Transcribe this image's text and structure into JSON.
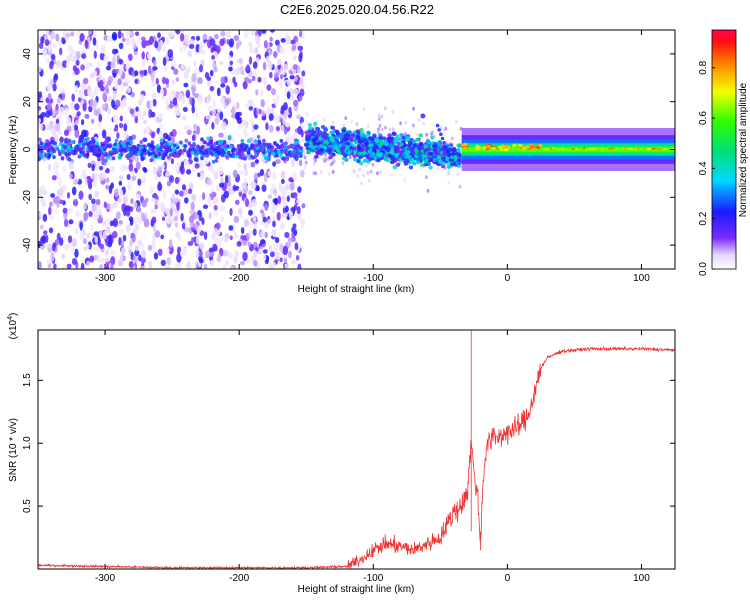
{
  "title": "C2E6.2025.020.04.56.R22",
  "colors": {
    "snr_line": "#ee3333",
    "axis": "#000000",
    "background": "#ffffff"
  },
  "chart_data": [
    {
      "type": "heatmap",
      "xlabel": "Height of straight line (km)",
      "ylabel": "Frequency (Hz)",
      "xlim": [
        -350,
        125
      ],
      "ylim": [
        -50,
        50
      ],
      "xticks": [
        "-300",
        "-200",
        "-100",
        "0",
        "100"
      ],
      "yticks": [
        "-40",
        "-20",
        "0",
        "20",
        "40"
      ],
      "colorbar": {
        "label": "Normalized spectral amplitude",
        "range": [
          0.0,
          0.95
        ],
        "ticks": [
          "0.0",
          "0.2",
          "0.4",
          "0.6",
          "0.8"
        ],
        "colormap": "rainbow"
      },
      "grid": false
    },
    {
      "type": "line",
      "xlabel": "Height of straight line (km)",
      "ylabel": "SNR (10 * v/v)",
      "y_scale_note": "(x10",
      "y_scale_exp": "4",
      "y_scale_close": ")",
      "xlim": [
        -350,
        125
      ],
      "ylim": [
        0,
        1.9
      ],
      "xticks": [
        "-300",
        "-200",
        "-100",
        "0",
        "100"
      ],
      "yticks": [
        "0.5",
        "1.0",
        "1.5"
      ],
      "grid": false,
      "series": [
        {
          "x": [
            -350,
            -300,
            -250,
            -200,
            -150,
            -120,
            -110,
            -100,
            -90,
            -80,
            -70,
            -60,
            -50,
            -45,
            -40,
            -35,
            -30,
            -27,
            -25,
            -22,
            -20,
            -18,
            -15,
            -10,
            -5,
            0,
            5,
            10,
            15,
            20,
            25,
            30,
            40,
            60,
            80,
            100,
            125
          ],
          "y": [
            0.03,
            0.02,
            0.01,
            0.01,
            0.01,
            0.02,
            0.07,
            0.15,
            0.2,
            0.18,
            0.15,
            0.2,
            0.25,
            0.35,
            0.45,
            0.5,
            0.6,
            1.0,
            0.8,
            0.55,
            0.2,
            0.75,
            1.0,
            1.05,
            1.05,
            1.1,
            1.1,
            1.15,
            1.2,
            1.4,
            1.6,
            1.68,
            1.73,
            1.75,
            1.75,
            1.75,
            1.74
          ],
          "spikes": [
            [
              -27,
              1.9
            ],
            [
              -20,
              0.15
            ]
          ]
        }
      ]
    }
  ]
}
